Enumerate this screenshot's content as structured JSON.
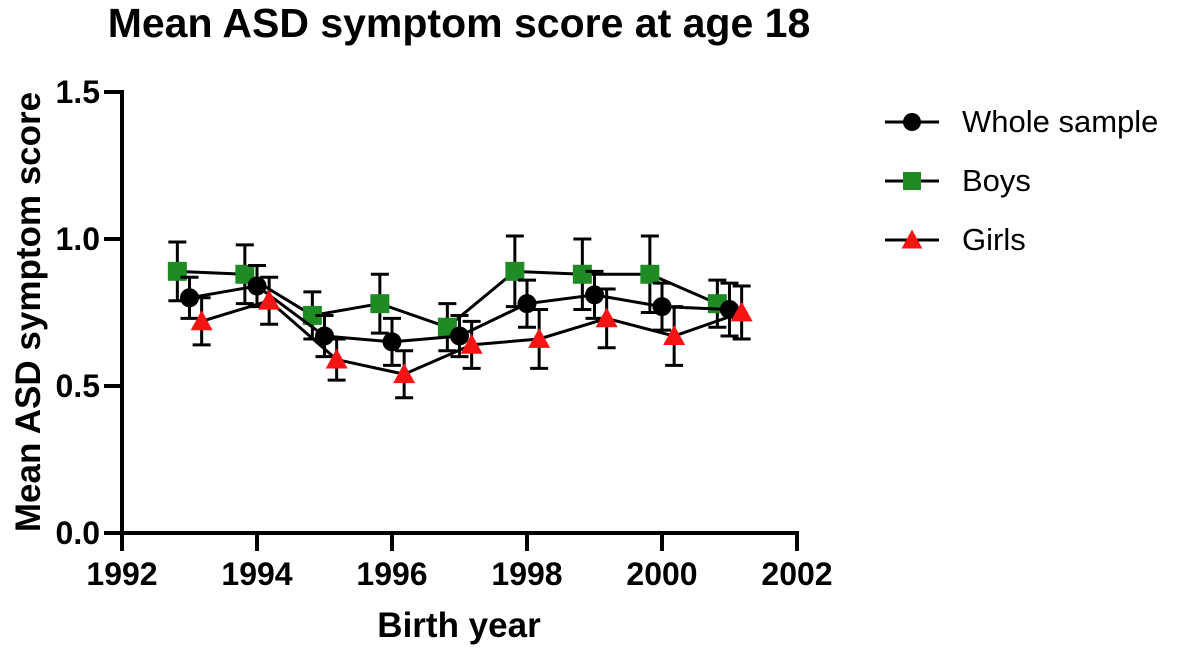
{
  "chart": {
    "title": "Mean ASD symptom score at age 18",
    "x_axis": {
      "label": "Birth year",
      "tick_labels": [
        "1992",
        "1994",
        "1996",
        "1998",
        "2000",
        "2002"
      ]
    },
    "y_axis": {
      "label": "Mean ASD symptom score",
      "tick_labels": [
        "0.0",
        "0.5",
        "1.0",
        "1.5"
      ]
    },
    "legend": [
      "Whole sample",
      "Boys",
      "Girls"
    ]
  },
  "chart_data": {
    "type": "line",
    "title": "Mean ASD symptom score at age 18",
    "xlabel": "Birth year",
    "ylabel": "Mean ASD symptom score",
    "x": [
      1993,
      1994,
      1995,
      1996,
      1997,
      1998,
      1999,
      2000,
      2001
    ],
    "xlim": [
      1992,
      2002
    ],
    "ylim": [
      0,
      1.5
    ],
    "x_ticks": [
      1992,
      1994,
      1996,
      1998,
      2000,
      2002
    ],
    "x_tick_labels": [
      "1992",
      "1994",
      "1996",
      "1998",
      "2000",
      "2002"
    ],
    "y_ticks": [
      0,
      0.5,
      1,
      1.5
    ],
    "y_tick_labels": [
      "0.0",
      "0.5",
      "1.0",
      "1.5"
    ],
    "grid": false,
    "legend_position": "right",
    "error_bars": true,
    "series": [
      {
        "name": "Whole sample",
        "marker": "circle",
        "color": "#000000",
        "x_offset": 0,
        "values": [
          0.8,
          0.84,
          0.67,
          0.65,
          0.67,
          0.78,
          0.81,
          0.77,
          0.76
        ],
        "errors": [
          0.07,
          0.07,
          0.07,
          0.08,
          0.07,
          0.08,
          0.08,
          0.08,
          0.09
        ]
      },
      {
        "name": "Boys",
        "marker": "square",
        "color": "#1f8b24",
        "x_offset": -0.18,
        "values": [
          0.89,
          0.88,
          0.74,
          0.78,
          0.7,
          0.89,
          0.88,
          0.88,
          0.78
        ],
        "errors": [
          0.1,
          0.1,
          0.08,
          0.1,
          0.08,
          0.12,
          0.12,
          0.13,
          0.08
        ]
      },
      {
        "name": "Girls",
        "marker": "triangle",
        "color": "#f41414",
        "x_offset": 0.18,
        "values": [
          0.72,
          0.79,
          0.59,
          0.54,
          0.64,
          0.66,
          0.73,
          0.67,
          0.75
        ],
        "errors": [
          0.08,
          0.08,
          0.07,
          0.08,
          0.08,
          0.1,
          0.1,
          0.1,
          0.09
        ]
      }
    ]
  }
}
